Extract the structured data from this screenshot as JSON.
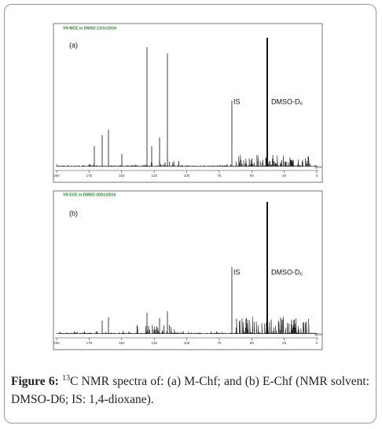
{
  "panels": [
    {
      "header": "VN MCE in DMSO 21Oct2016",
      "label": "(a)",
      "is_label": "IS",
      "solvent_label": "DMSO-D₆",
      "ticks": [
        200,
        175,
        150,
        125,
        100,
        75,
        50,
        25,
        0
      ],
      "unit": "ppm"
    },
    {
      "header": "VN ECE in DMSO 20Oct2016",
      "label": "(b)",
      "is_label": "IS",
      "solvent_label": "DMSO-D₆",
      "ticks": [
        200,
        175,
        150,
        125,
        100,
        75,
        50,
        25,
        0
      ],
      "unit": "ppm"
    }
  ],
  "caption": {
    "label": "Figure 6:",
    "superscript": "13",
    "text": "C NMR spectra of: (a) M-Chf; and (b) E-Chf (NMR solvent: DMSO-D6; IS: 1,4-dioxane)."
  }
}
